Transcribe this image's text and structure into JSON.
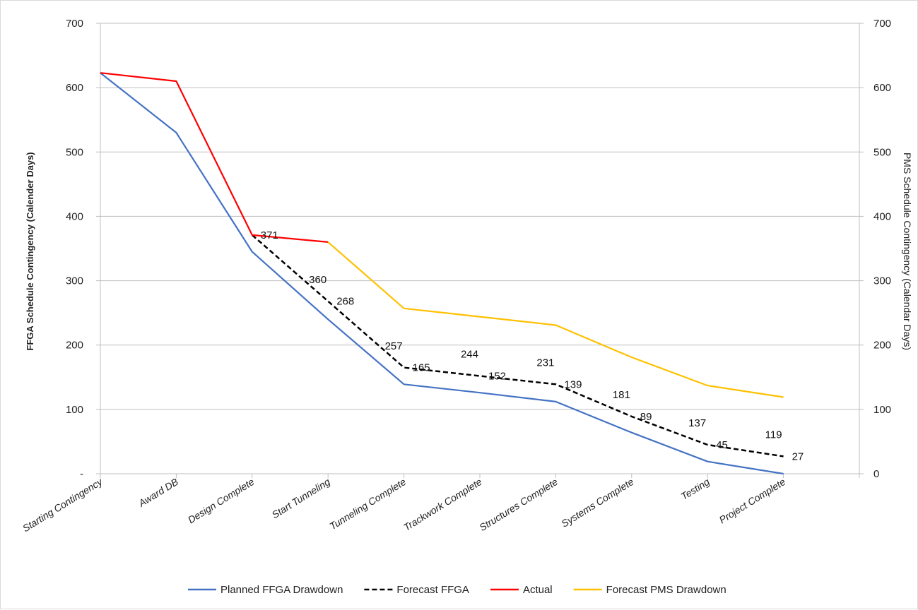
{
  "chart_data": {
    "type": "line",
    "title": "",
    "categories": [
      "Starting Contingency",
      "Award DB",
      "Design Complete",
      "Start Tunneling",
      "Tunneling Complete",
      "Trackwork Complete",
      "Structures Complete",
      "Systems Complete",
      "Testing",
      "Project Complete"
    ],
    "y_left": {
      "label": "FFGA Schedule Contingency (Calender Days)",
      "range": [
        0,
        700
      ],
      "ticks": [
        "-",
        "100",
        "200",
        "300",
        "400",
        "500",
        "600",
        "700"
      ]
    },
    "y_right": {
      "label": "PMS Schedule Contingency (Calendar Days)",
      "range": [
        0,
        700
      ],
      "ticks": [
        "0",
        "100",
        "200",
        "300",
        "400",
        "500",
        "600",
        "700"
      ]
    },
    "grid": true,
    "legend_position": "bottom",
    "series": [
      {
        "name": "Planned FFGA Drawdown",
        "color": "#4472C4",
        "dash": "solid",
        "axis": "left",
        "values": [
          623,
          530,
          345,
          240,
          139,
          126,
          112,
          64,
          19,
          0
        ],
        "labels": []
      },
      {
        "name": "Forecast FFGA",
        "color": "#000000",
        "dash": "dashed",
        "axis": "left",
        "values": [
          null,
          null,
          371,
          268,
          165,
          152,
          139,
          89,
          45,
          27
        ],
        "labels": [
          "",
          "",
          "371",
          "268",
          "165",
          "152",
          "139",
          "89",
          "45",
          "27"
        ]
      },
      {
        "name": "Actual",
        "color": "#FF0000",
        "dash": "solid",
        "axis": "right",
        "values": [
          623,
          610,
          371,
          360,
          null,
          null,
          null,
          null,
          null,
          null
        ],
        "labels": [
          "",
          "",
          "",
          "360",
          "",
          "",
          "",
          "",
          "",
          ""
        ]
      },
      {
        "name": "Forecast PMS Drawdown",
        "color": "#FFC000",
        "dash": "solid",
        "axis": "right",
        "values": [
          null,
          null,
          null,
          360,
          257,
          244,
          231,
          181,
          137,
          119
        ],
        "labels": [
          "",
          "",
          "",
          "",
          "257",
          "244",
          "231",
          "181",
          "137",
          "119"
        ]
      }
    ]
  }
}
